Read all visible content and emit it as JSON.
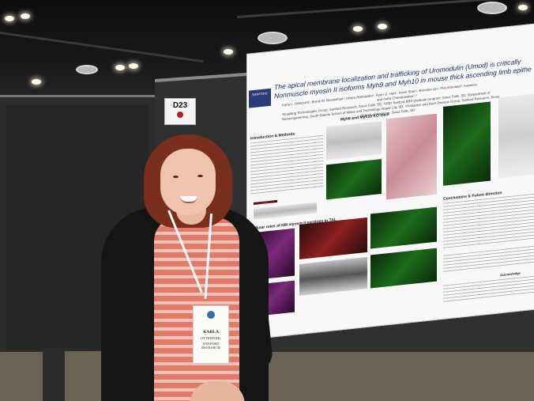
{
  "scene": {
    "type": "photo",
    "description_visible_text": true
  },
  "board_label": {
    "number": "D23"
  },
  "poster": {
    "title_line1": "The apical membrane localization and trafficking of Uromodulin (Umod) is critically",
    "title_line2": "Nonmuscle myosin II isoforms Myh9 and Myh10 in mouse thick ascending limb epithe",
    "authors_line1": "Karla L. Otterpohl¹, Brook W. Busselman¹, Ishara Ratnayake¹, Ryan G. Hart¹, Kevin Shan¹, Brendon Lin¹, Phil Ahrenkiel², Kamesw",
    "authors_line2": "and Indra Chandrasekar¹·³",
    "affiliation_line1": "¹Enabling Technologies Group, Sanford Research, Sioux Falls, SD, ²USD Sanford BBS graduate program, Sioux Falls, SD, ³Department of",
    "affiliation_line2": "Nanoengineering, South Dakota School of Mines and Technology, Rapid City SD, ⁴Pediatrics and Rare Disease Group, Sanford Research, Sioux",
    "affiliation_line3": "School of Medicine, Sioux Falls, SD",
    "section_intro": "Introduction & Methods",
    "section_myh": "Myh9 and Myh10 KO mice",
    "section_results": "Cellular roles of NM myosin II paralogs in TAL",
    "section_conclusions": "Conclusions & Future direction",
    "section_acknowledgements": "Acknowledge",
    "logo_text": "SANFORD"
  },
  "badge": {
    "name": "KARLA",
    "name2": "OTTERPOHL",
    "org": "SANFORD RESEARCH"
  }
}
